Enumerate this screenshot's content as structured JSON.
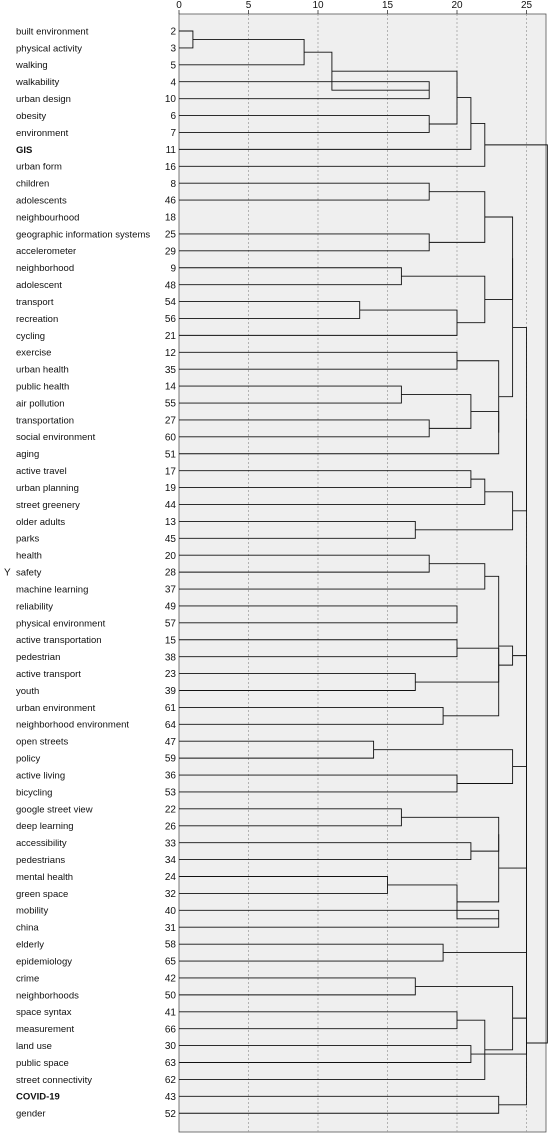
{
  "chart_data": {
    "type": "dendrogram",
    "ylabel": "Y",
    "xticks": [
      0,
      5,
      10,
      15,
      20,
      25
    ],
    "xlim": [
      0,
      26.5
    ],
    "grid": "vertical dotted",
    "leaves": [
      {
        "label": "built environment",
        "id": "2"
      },
      {
        "label": "physical activity",
        "id": "3"
      },
      {
        "label": "walking",
        "id": "5"
      },
      {
        "label": "walkability",
        "id": "4"
      },
      {
        "label": "urban design",
        "id": "10"
      },
      {
        "label": "obesity",
        "id": "6"
      },
      {
        "label": "environment",
        "id": "7"
      },
      {
        "label": "GIS",
        "id": "11",
        "bold": true
      },
      {
        "label": "urban form",
        "id": "16"
      },
      {
        "label": "children",
        "id": "8"
      },
      {
        "label": "adolescents",
        "id": "46"
      },
      {
        "label": "neighbourhood",
        "id": "18"
      },
      {
        "label": "geographic information systems",
        "id": "25"
      },
      {
        "label": "accelerometer",
        "id": "29"
      },
      {
        "label": "neighborhood",
        "id": "9"
      },
      {
        "label": "adolescent",
        "id": "48"
      },
      {
        "label": "transport",
        "id": "54"
      },
      {
        "label": "recreation",
        "id": "56"
      },
      {
        "label": "cycling",
        "id": "21"
      },
      {
        "label": "exercise",
        "id": "12"
      },
      {
        "label": "urban health",
        "id": "35"
      },
      {
        "label": "public health",
        "id": "14"
      },
      {
        "label": "air pollution",
        "id": "55"
      },
      {
        "label": "transportation",
        "id": "27"
      },
      {
        "label": "social environment",
        "id": "60"
      },
      {
        "label": "aging",
        "id": "51"
      },
      {
        "label": "active travel",
        "id": "17"
      },
      {
        "label": "urban planning",
        "id": "19"
      },
      {
        "label": "street greenery",
        "id": "44"
      },
      {
        "label": "older adults",
        "id": "13"
      },
      {
        "label": "parks",
        "id": "45"
      },
      {
        "label": "health",
        "id": "20"
      },
      {
        "label": "safety",
        "id": "28"
      },
      {
        "label": "machine learning",
        "id": "37"
      },
      {
        "label": "reliability",
        "id": "49"
      },
      {
        "label": "physical environment",
        "id": "57"
      },
      {
        "label": "active transportation",
        "id": "15"
      },
      {
        "label": "pedestrian",
        "id": "38"
      },
      {
        "label": "active transport",
        "id": "23"
      },
      {
        "label": "youth",
        "id": "39"
      },
      {
        "label": "urban environment",
        "id": "61"
      },
      {
        "label": "neighborhood environment",
        "id": "64"
      },
      {
        "label": "open streets",
        "id": "47"
      },
      {
        "label": "policy",
        "id": "59"
      },
      {
        "label": "active living",
        "id": "36"
      },
      {
        "label": "bicycling",
        "id": "53"
      },
      {
        "label": "google street view",
        "id": "22"
      },
      {
        "label": "deep learning",
        "id": "26"
      },
      {
        "label": "accessibility",
        "id": "33"
      },
      {
        "label": "pedestrians",
        "id": "34"
      },
      {
        "label": "mental health",
        "id": "24"
      },
      {
        "label": "green space",
        "id": "32"
      },
      {
        "label": "mobility",
        "id": "40"
      },
      {
        "label": "china",
        "id": "31"
      },
      {
        "label": "elderly",
        "id": "58"
      },
      {
        "label": "epidemiology",
        "id": "65"
      },
      {
        "label": "crime",
        "id": "42"
      },
      {
        "label": "neighborhoods",
        "id": "50"
      },
      {
        "label": "space syntax",
        "id": "41"
      },
      {
        "label": "measurement",
        "id": "66"
      },
      {
        "label": "land use",
        "id": "30"
      },
      {
        "label": "public space",
        "id": "63"
      },
      {
        "label": "street connectivity",
        "id": "62"
      },
      {
        "label": "COVID-19",
        "id": "43",
        "bold": true
      },
      {
        "label": "gender",
        "id": "52"
      }
    ],
    "merges": [
      {
        "a": "L0",
        "b": "L1",
        "h": 1
      },
      {
        "a": "L3",
        "b": "L4",
        "h": 18
      },
      {
        "a": "L5",
        "b": "L6",
        "h": 18
      },
      {
        "a": "L9",
        "b": "L10",
        "h": 18
      },
      {
        "a": "L12",
        "b": "L13",
        "h": 18
      },
      {
        "a": "L14",
        "b": "L15",
        "h": 16
      },
      {
        "a": "L16",
        "b": "L17",
        "h": 13
      },
      {
        "a": "L19",
        "b": "L20",
        "h": 20
      },
      {
        "a": "L21",
        "b": "L22",
        "h": 16
      },
      {
        "a": "L23",
        "b": "L24",
        "h": 18
      },
      {
        "a": "L26",
        "b": "L27",
        "h": 21
      },
      {
        "a": "L29",
        "b": "L30",
        "h": 17
      },
      {
        "a": "L31",
        "b": "L32",
        "h": 18
      },
      {
        "a": "L34",
        "b": "L35",
        "h": 20
      },
      {
        "a": "L36",
        "b": "L37",
        "h": 20
      },
      {
        "a": "L38",
        "b": "L39",
        "h": 17
      },
      {
        "a": "L40",
        "b": "L41",
        "h": 19
      },
      {
        "a": "L42",
        "b": "L43",
        "h": 14
      },
      {
        "a": "L44",
        "b": "L45",
        "h": 20
      },
      {
        "a": "L46",
        "b": "L47",
        "h": 16
      },
      {
        "a": "L48",
        "b": "L49",
        "h": 21
      },
      {
        "a": "L50",
        "b": "L51",
        "h": 15
      },
      {
        "a": "L53",
        "b": "L52",
        "h": 23
      },
      {
        "a": "L54",
        "b": "L55",
        "h": 19
      },
      {
        "a": "L56",
        "b": "L57",
        "h": 17
      },
      {
        "a": "L58",
        "b": "L59",
        "h": 20
      },
      {
        "a": "L60",
        "b": "L61",
        "h": 21
      },
      {
        "a": "L63",
        "b": "L64",
        "h": 23
      },
      {
        "a": "M0",
        "b": "L2",
        "h": 9
      },
      {
        "a": "M28",
        "b": "M1",
        "h": 11
      },
      {
        "a": "M29",
        "b": "M2",
        "h": 20
      },
      {
        "a": "M30",
        "b": "L7",
        "h": 21
      },
      {
        "a": "M31",
        "b": "L8",
        "h": 22
      },
      {
        "a": "M6",
        "b": "L18",
        "h": 20
      },
      {
        "a": "M5",
        "b": "M33",
        "h": 22
      },
      {
        "a": "M8",
        "b": "M9",
        "h": 21
      },
      {
        "a": "M35",
        "b": "L25",
        "h": 23
      },
      {
        "a": "M36",
        "b": "M7",
        "h": 23
      },
      {
        "a": "M10",
        "b": "L28",
        "h": 22
      },
      {
        "a": "M12",
        "b": "L33",
        "h": 22
      },
      {
        "a": "M14",
        "b": "M15",
        "h": 23
      },
      {
        "a": "M39",
        "b": "M16",
        "h": 23
      },
      {
        "a": "M11",
        "b": "M38",
        "h": 24
      },
      {
        "a": "M3",
        "b": "M4",
        "h": 22
      },
      {
        "a": "M34",
        "b": "M43",
        "h": 24
      },
      {
        "a": "M44",
        "b": "M37",
        "h": 24
      },
      {
        "a": "M17",
        "b": "M18",
        "h": 24
      },
      {
        "a": "M40",
        "b": "M41",
        "h": 24
      },
      {
        "a": "M19",
        "b": "M20",
        "h": 23
      },
      {
        "a": "M21",
        "b": "M22",
        "h": 20
      },
      {
        "a": "M48",
        "b": "M49",
        "h": 23
      },
      {
        "a": "M25",
        "b": "L62",
        "h": 22
      },
      {
        "a": "M24",
        "b": "M51",
        "h": 24
      },
      {
        "a": "M46",
        "b": "M47",
        "h": 25
      },
      {
        "a": "M42",
        "b": "M45",
        "h": 25
      },
      {
        "a": "M53",
        "b": "M54",
        "h": 25
      },
      {
        "a": "M55",
        "b": "M50",
        "h": 25
      },
      {
        "a": "M56",
        "b": "M23",
        "h": 25
      },
      {
        "a": "M57",
        "b": "M26",
        "h": 25
      },
      {
        "a": "M58",
        "b": "M52",
        "h": 25
      },
      {
        "a": "M59",
        "b": "M27",
        "h": 25
      },
      {
        "a": "M32",
        "b": "M60",
        "h": 26.5
      }
    ]
  }
}
